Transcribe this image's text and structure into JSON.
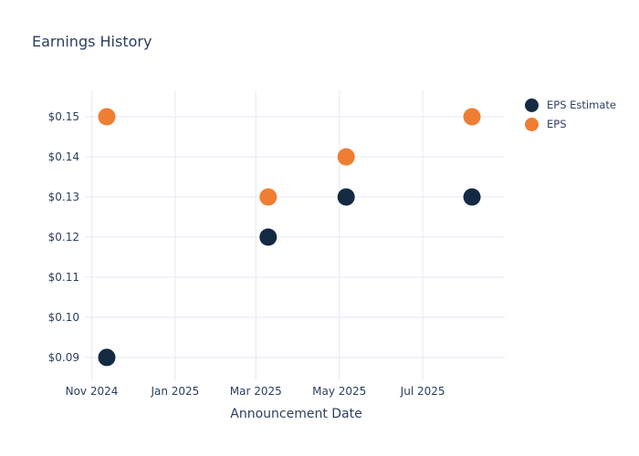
{
  "chart_data": {
    "type": "scatter",
    "title": "Earnings History",
    "xlabel": "Announcement Date",
    "legend_position": "right-top",
    "grid": true,
    "background": "#ffffff",
    "colors": {
      "text": "#2a3f5f",
      "grid": "#e9edf6"
    },
    "marker_diameter_px": 19,
    "x_axis": {
      "type": "date",
      "range": [
        "2024-10-29",
        "2025-08-30"
      ],
      "ticks": [
        {
          "date": "2024-11-01",
          "label": "Nov 2024"
        },
        {
          "date": "2025-01-01",
          "label": "Jan 2025"
        },
        {
          "date": "2025-03-01",
          "label": "Mar 2025"
        },
        {
          "date": "2025-05-01",
          "label": "May 2025"
        },
        {
          "date": "2025-07-01",
          "label": "Jul 2025"
        }
      ]
    },
    "y_axis": {
      "range": [
        0.0843,
        0.1566
      ],
      "ticks": [
        {
          "value": 0.15,
          "label": "$0.15"
        },
        {
          "value": 0.14,
          "label": "$0.14"
        },
        {
          "value": 0.13,
          "label": "$0.13"
        },
        {
          "value": 0.12,
          "label": "$0.12"
        },
        {
          "value": 0.11,
          "label": "$0.11"
        },
        {
          "value": 0.1,
          "label": "$0.10"
        },
        {
          "value": 0.09,
          "label": "$0.09"
        }
      ]
    },
    "x_dates": [
      "2024-11-12",
      "2025-03-10",
      "2025-05-06",
      "2025-08-06"
    ],
    "series": [
      {
        "name": "EPS Estimate",
        "color": "#142a42",
        "values": [
          0.09,
          0.12,
          0.13,
          0.13
        ]
      },
      {
        "name": "EPS",
        "color": "#ef7e33",
        "values": [
          0.15,
          0.13,
          0.14,
          0.15
        ]
      }
    ]
  }
}
